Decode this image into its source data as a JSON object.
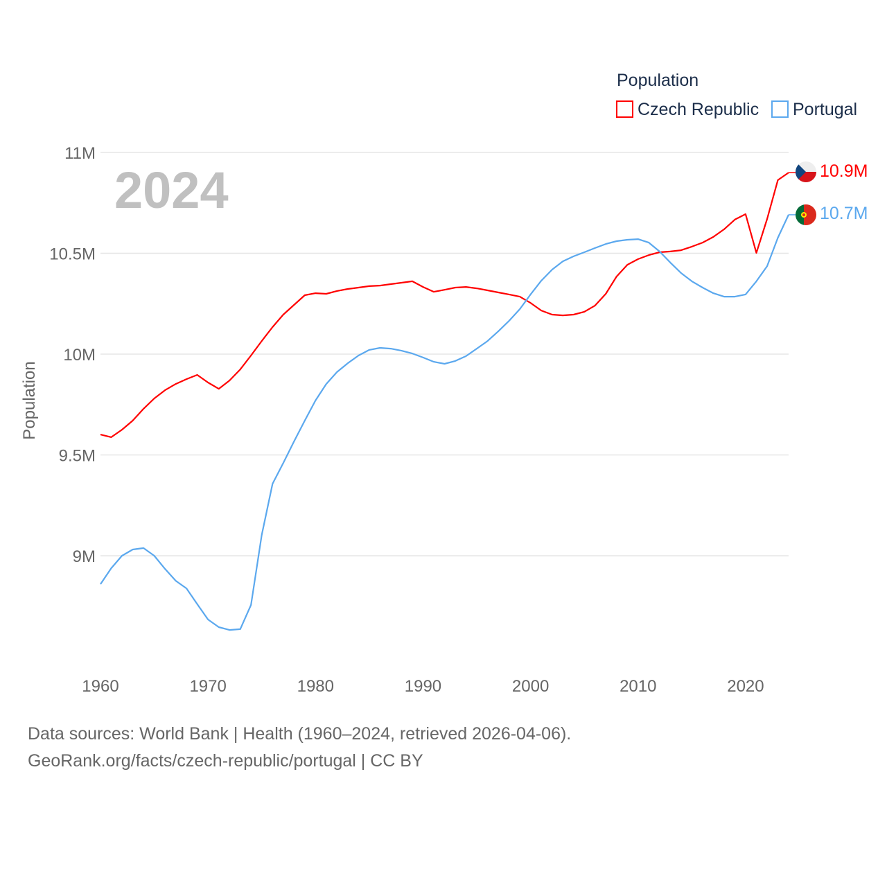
{
  "chart_data": {
    "type": "line",
    "title": "Population",
    "ylabel": "Population",
    "xlabel": "",
    "year_label": "2024",
    "ylim": [
      8.5,
      11.0
    ],
    "xlim": [
      1960,
      2024
    ],
    "grid": true,
    "legend_placement": "top-right",
    "y_ticks": [
      {
        "v": 11,
        "label": "11M"
      },
      {
        "v": 10.5,
        "label": "10.5M"
      },
      {
        "v": 10,
        "label": "10M"
      },
      {
        "v": 9.5,
        "label": "9.5M"
      },
      {
        "v": 9,
        "label": "9M"
      }
    ],
    "x_ticks": [
      {
        "v": 1960,
        "label": "1960"
      },
      {
        "v": 1970,
        "label": "1970"
      },
      {
        "v": 1980,
        "label": "1980"
      },
      {
        "v": 1990,
        "label": "1990"
      },
      {
        "v": 2000,
        "label": "2000"
      },
      {
        "v": 2010,
        "label": "2010"
      },
      {
        "v": 2020,
        "label": "2020"
      }
    ],
    "x_start": 1960,
    "series": [
      {
        "name": "Czech Republic",
        "color": "#ff0000",
        "end_label": "10.9M",
        "flag": "czech",
        "values": [
          9.601,
          9.588,
          9.625,
          9.67,
          9.729,
          9.78,
          9.821,
          9.852,
          9.876,
          9.897,
          9.859,
          9.828,
          9.869,
          9.924,
          9.993,
          10.065,
          10.134,
          10.196,
          10.244,
          10.292,
          10.302,
          10.299,
          10.313,
          10.323,
          10.33,
          10.337,
          10.34,
          10.347,
          10.354,
          10.361,
          10.333,
          10.309,
          10.319,
          10.33,
          10.333,
          10.326,
          10.316,
          10.306,
          10.296,
          10.285,
          10.254,
          10.216,
          10.196,
          10.192,
          10.196,
          10.21,
          10.241,
          10.299,
          10.385,
          10.443,
          10.471,
          10.491,
          10.505,
          10.509,
          10.515,
          10.533,
          10.553,
          10.581,
          10.619,
          10.667,
          10.694,
          10.502,
          10.67,
          10.863,
          10.9
        ]
      },
      {
        "name": "Portugal",
        "color": "#5ba8ee",
        "end_label": "10.7M",
        "flag": "portugal",
        "values": [
          8.859,
          8.938,
          9.0,
          9.031,
          9.038,
          9.0,
          8.935,
          8.876,
          8.838,
          8.76,
          8.684,
          8.646,
          8.632,
          8.636,
          8.756,
          9.103,
          9.357,
          9.46,
          9.567,
          9.67,
          9.77,
          9.852,
          9.911,
          9.955,
          9.993,
          10.021,
          10.031,
          10.027,
          10.017,
          10.003,
          9.983,
          9.962,
          9.952,
          9.966,
          9.99,
          10.027,
          10.065,
          10.113,
          10.165,
          10.223,
          10.296,
          10.364,
          10.419,
          10.46,
          10.485,
          10.505,
          10.526,
          10.546,
          10.56,
          10.567,
          10.57,
          10.553,
          10.509,
          10.454,
          10.402,
          10.361,
          10.33,
          10.302,
          10.285,
          10.285,
          10.296,
          10.361,
          10.436,
          10.577,
          10.691
        ]
      }
    ]
  },
  "footer": {
    "line1": "Data sources: World Bank | Health (1960–2024, retrieved 2026-04-06).",
    "line2": "GeoRank.org/facts/czech-republic/portugal | CC BY"
  }
}
